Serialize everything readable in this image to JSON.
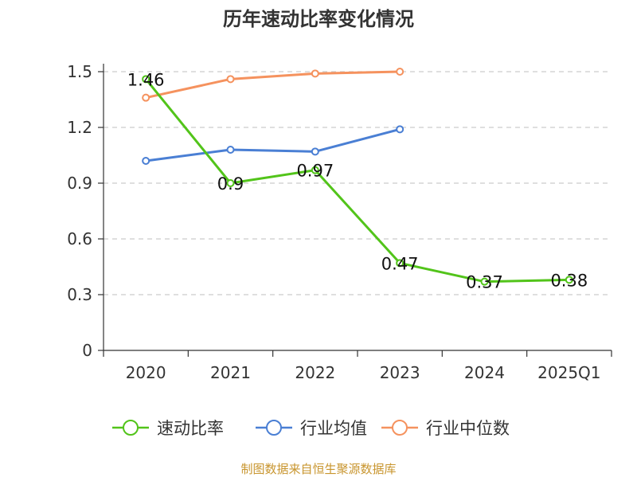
{
  "chart_data": {
    "type": "line",
    "title": "历年速动比率变化情况",
    "categories": [
      "2020",
      "2021",
      "2022",
      "2023",
      "2024",
      "2025Q1"
    ],
    "ylim": [
      0,
      1.5
    ],
    "yticks": [
      0,
      0.3,
      0.6,
      0.9,
      1.2,
      1.5
    ],
    "ytick_labels": [
      "0",
      "0.3",
      "0.6",
      "0.9",
      "1.2",
      "1.5"
    ],
    "grid": true,
    "legend_position": "bottom",
    "series": [
      {
        "name": "速动比率",
        "color": "#52c41a",
        "values": [
          1.46,
          0.9,
          0.97,
          0.47,
          0.37,
          0.38
        ],
        "labels": [
          "1.46",
          "0.9",
          "0.97",
          "0.47",
          "0.37",
          "0.38"
        ]
      },
      {
        "name": "行业均值",
        "color": "#4a7fd4",
        "values": [
          1.02,
          1.08,
          1.07,
          1.19,
          null,
          null
        ],
        "labels": null
      },
      {
        "name": "行业中位数",
        "color": "#f5925e",
        "values": [
          1.36,
          1.46,
          1.49,
          1.5,
          null,
          null
        ],
        "labels": null
      }
    ],
    "source": "制图数据来自恒生聚源数据库",
    "source_color": "#c8952e"
  }
}
